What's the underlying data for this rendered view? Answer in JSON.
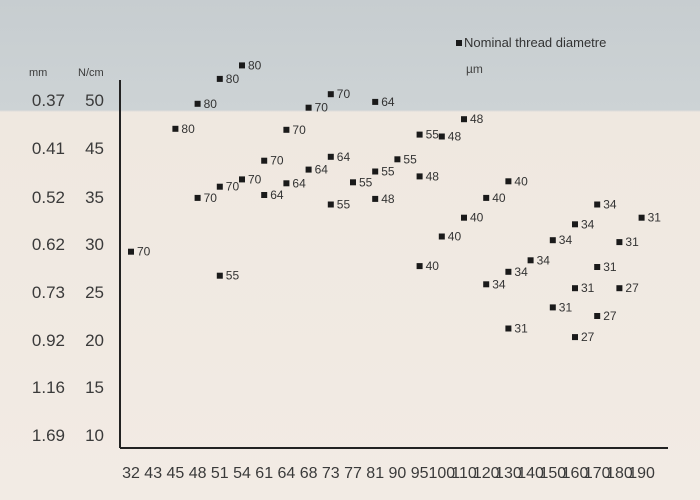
{
  "chart_data": {
    "type": "scatter",
    "title": "",
    "legend": {
      "marker_label": "Nominal thread diametre",
      "unit": "µm",
      "placement": "top-right"
    },
    "y_units": {
      "left": "mm",
      "right": "N/cm"
    },
    "y_ticks": [
      {
        "mm": "0.37",
        "ncm": "50",
        "value": 50
      },
      {
        "mm": "0.41",
        "ncm": "45",
        "value": 45
      },
      {
        "mm": "0.52",
        "ncm": "35",
        "value": 35
      },
      {
        "mm": "0.62",
        "ncm": "30",
        "value": 30
      },
      {
        "mm": "0.73",
        "ncm": "25",
        "value": 25
      },
      {
        "mm": "0.92",
        "ncm": "20",
        "value": 20
      },
      {
        "mm": "1.16",
        "ncm": "15",
        "value": 15
      },
      {
        "mm": "1.69",
        "ncm": "10",
        "value": 10
      }
    ],
    "x_ticks": [
      "32",
      "43",
      "45",
      "48",
      "51",
      "54",
      "61",
      "64",
      "68",
      "73",
      "77",
      "81",
      "90",
      "95",
      "100",
      "110",
      "120",
      "130",
      "140",
      "150",
      "160",
      "170",
      "180",
      "190"
    ],
    "points": [
      {
        "x": 32,
        "y": 29.2,
        "label": "70"
      },
      {
        "x": 45,
        "y": 47.0,
        "label": "80"
      },
      {
        "x": 48,
        "y": 49.6,
        "label": "80"
      },
      {
        "x": 51,
        "y": 52.2,
        "label": "80"
      },
      {
        "x": 54,
        "y": 53.6,
        "label": "80"
      },
      {
        "x": 48,
        "y": 34.9,
        "label": "70"
      },
      {
        "x": 51,
        "y": 37.1,
        "label": "70"
      },
      {
        "x": 54,
        "y": 38.6,
        "label": "70"
      },
      {
        "x": 61,
        "y": 42.4,
        "label": "70"
      },
      {
        "x": 64,
        "y": 46.9,
        "label": "70"
      },
      {
        "x": 68,
        "y": 49.2,
        "label": "70"
      },
      {
        "x": 73,
        "y": 50.6,
        "label": "70"
      },
      {
        "x": 51,
        "y": 26.7,
        "label": "55"
      },
      {
        "x": 61,
        "y": 35.4,
        "label": "64"
      },
      {
        "x": 64,
        "y": 37.8,
        "label": "64"
      },
      {
        "x": 68,
        "y": 40.6,
        "label": "64"
      },
      {
        "x": 73,
        "y": 43.2,
        "label": "64"
      },
      {
        "x": 81,
        "y": 49.8,
        "label": "64"
      },
      {
        "x": 73,
        "y": 34.2,
        "label": "55"
      },
      {
        "x": 77,
        "y": 38.0,
        "label": "55"
      },
      {
        "x": 81,
        "y": 40.2,
        "label": "55"
      },
      {
        "x": 90,
        "y": 42.7,
        "label": "55"
      },
      {
        "x": 95,
        "y": 46.4,
        "label": "55"
      },
      {
        "x": 81,
        "y": 34.8,
        "label": "48"
      },
      {
        "x": 95,
        "y": 39.2,
        "label": "48"
      },
      {
        "x": 100,
        "y": 46.2,
        "label": "48"
      },
      {
        "x": 110,
        "y": 48.0,
        "label": "48"
      },
      {
        "x": 95,
        "y": 27.7,
        "label": "40"
      },
      {
        "x": 100,
        "y": 30.8,
        "label": "40"
      },
      {
        "x": 110,
        "y": 32.8,
        "label": "40"
      },
      {
        "x": 120,
        "y": 34.9,
        "label": "40"
      },
      {
        "x": 130,
        "y": 38.2,
        "label": "40"
      },
      {
        "x": 120,
        "y": 25.8,
        "label": "34"
      },
      {
        "x": 130,
        "y": 27.1,
        "label": "34"
      },
      {
        "x": 140,
        "y": 28.3,
        "label": "34"
      },
      {
        "x": 150,
        "y": 30.4,
        "label": "34"
      },
      {
        "x": 160,
        "y": 32.1,
        "label": "34"
      },
      {
        "x": 170,
        "y": 34.2,
        "label": "34"
      },
      {
        "x": 130,
        "y": 21.2,
        "label": "31"
      },
      {
        "x": 150,
        "y": 23.4,
        "label": "31"
      },
      {
        "x": 160,
        "y": 25.4,
        "label": "31"
      },
      {
        "x": 170,
        "y": 27.6,
        "label": "31"
      },
      {
        "x": 180,
        "y": 30.2,
        "label": "31"
      },
      {
        "x": 190,
        "y": 32.8,
        "label": "31"
      },
      {
        "x": 160,
        "y": 20.3,
        "label": "27"
      },
      {
        "x": 170,
        "y": 22.5,
        "label": "27"
      },
      {
        "x": 180,
        "y": 25.4,
        "label": "27"
      }
    ]
  }
}
